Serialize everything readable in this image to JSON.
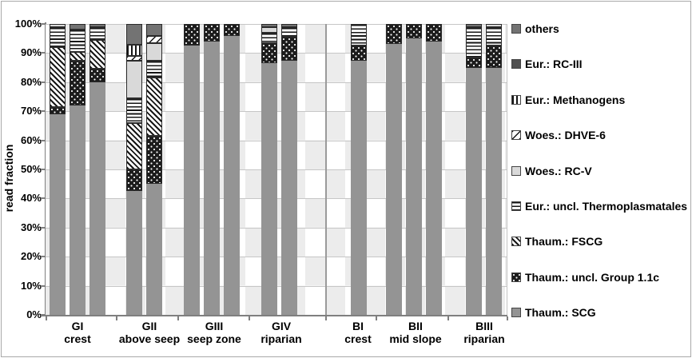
{
  "chart_data": {
    "type": "bar",
    "stacked": true,
    "unit": "percent",
    "title": "",
    "xlabel": "",
    "ylabel": "read fraction",
    "ylim": [
      0,
      100
    ],
    "grid": true,
    "legend_position": "right",
    "yticks": [
      "0%",
      "10%",
      "20%",
      "30%",
      "40%",
      "50%",
      "60%",
      "70%",
      "80%",
      "90%",
      "100%"
    ],
    "series_keys_bottom_to_top": [
      "scg",
      "g11c",
      "fscg",
      "thermo",
      "rcv",
      "dhve6",
      "meth",
      "rciii",
      "others"
    ],
    "series_names": {
      "scg": "Thaum.: SCG",
      "g11c": "Thaum.: uncl. Group 1.1c",
      "fscg": "Thaum.: FSCG",
      "thermo": "Eur.: uncl. Thermoplasmatales",
      "rcv": "Woes.: RC-V",
      "dhve6": "Woes.: DHVE-6",
      "meth": "Eur.: Methanogens",
      "rciii": "Eur.: RC-III",
      "others": "others"
    },
    "groups": [
      {
        "label": "GI",
        "sublabel": "crest",
        "bars": [
          {
            "scg": 69,
            "g11c": 2.5,
            "fscg": 20.5,
            "thermo": 7,
            "rcv": 1
          },
          {
            "scg": 72,
            "g11c": 15.5,
            "fscg": 3,
            "thermo": 7.5,
            "others": 2
          },
          {
            "scg": 80,
            "g11c": 4.5,
            "fscg": 10,
            "thermo": 4.5,
            "others": 1
          }
        ]
      },
      {
        "label": "GII",
        "sublabel": "above seep",
        "bars": [
          {
            "scg": 42.5,
            "g11c": 7.5,
            "fscg": 16,
            "thermo": 8.5,
            "rcv": 13,
            "dhve6": 1.5,
            "meth": 4,
            "others": 7
          },
          {
            "scg": 45,
            "g11c": 16.5,
            "fscg": 20,
            "thermo": 6,
            "rcv": 6,
            "dhve6": 2.5,
            "others": 4
          }
        ]
      },
      {
        "label": "GIII",
        "sublabel": "seep zone",
        "bars": [
          {
            "scg": 92.5,
            "g11c": 7.5
          },
          {
            "scg": 94,
            "g11c": 6
          },
          {
            "scg": 96,
            "g11c": 4
          }
        ]
      },
      {
        "label": "GIV",
        "sublabel": "riparian",
        "bars": [
          {
            "scg": 86.5,
            "g11c": 7,
            "thermo": 3.5,
            "rcv": 2,
            "others": 1
          },
          {
            "scg": 87.5,
            "g11c": 8,
            "thermo": 3.5,
            "others": 1
          }
        ]
      },
      {
        "label": "BI",
        "sublabel": "crest",
        "bars": [
          {
            "scg": 87.5,
            "g11c": 5,
            "thermo": 7.5
          }
        ]
      },
      {
        "label": "BII",
        "sublabel": "mid slope",
        "bars": [
          {
            "scg": 93,
            "g11c": 7
          },
          {
            "scg": 95,
            "g11c": 5
          },
          {
            "scg": 94,
            "g11c": 6
          }
        ]
      },
      {
        "label": "BIII",
        "sublabel": "riparian",
        "bars": [
          {
            "scg": 85,
            "g11c": 3.5,
            "thermo": 10.5,
            "others": 1
          },
          {
            "scg": 85,
            "g11c": 7.5,
            "thermo": 6.5,
            "rcv": 1
          }
        ]
      }
    ],
    "legend": [
      {
        "key": "others",
        "label": "others"
      },
      {
        "key": "rciii",
        "label": "Eur.: RC-III"
      },
      {
        "key": "meth",
        "label": "Eur.: Methanogens"
      },
      {
        "key": "dhve6",
        "label": "Woes.: DHVE-6"
      },
      {
        "key": "rcv",
        "label": "Woes.: RC-V"
      },
      {
        "key": "thermo",
        "label": "Eur.: uncl. Thermoplasmatales"
      },
      {
        "key": "fscg",
        "label": "Thaum.: FSCG"
      },
      {
        "key": "g11c",
        "label": "Thaum.: uncl. Group 1.1c"
      },
      {
        "key": "scg",
        "label": "Thaum.: SCG"
      }
    ],
    "colors": {
      "scg": "#949494",
      "others": "#737373",
      "rciii": "#4f4f4f",
      "rcv": "#d9d9d9",
      "pattern_ink": "#161616",
      "plot_band": "#ececec",
      "gridline": "#c6c6c6",
      "axis": "#7f7f7f"
    }
  }
}
